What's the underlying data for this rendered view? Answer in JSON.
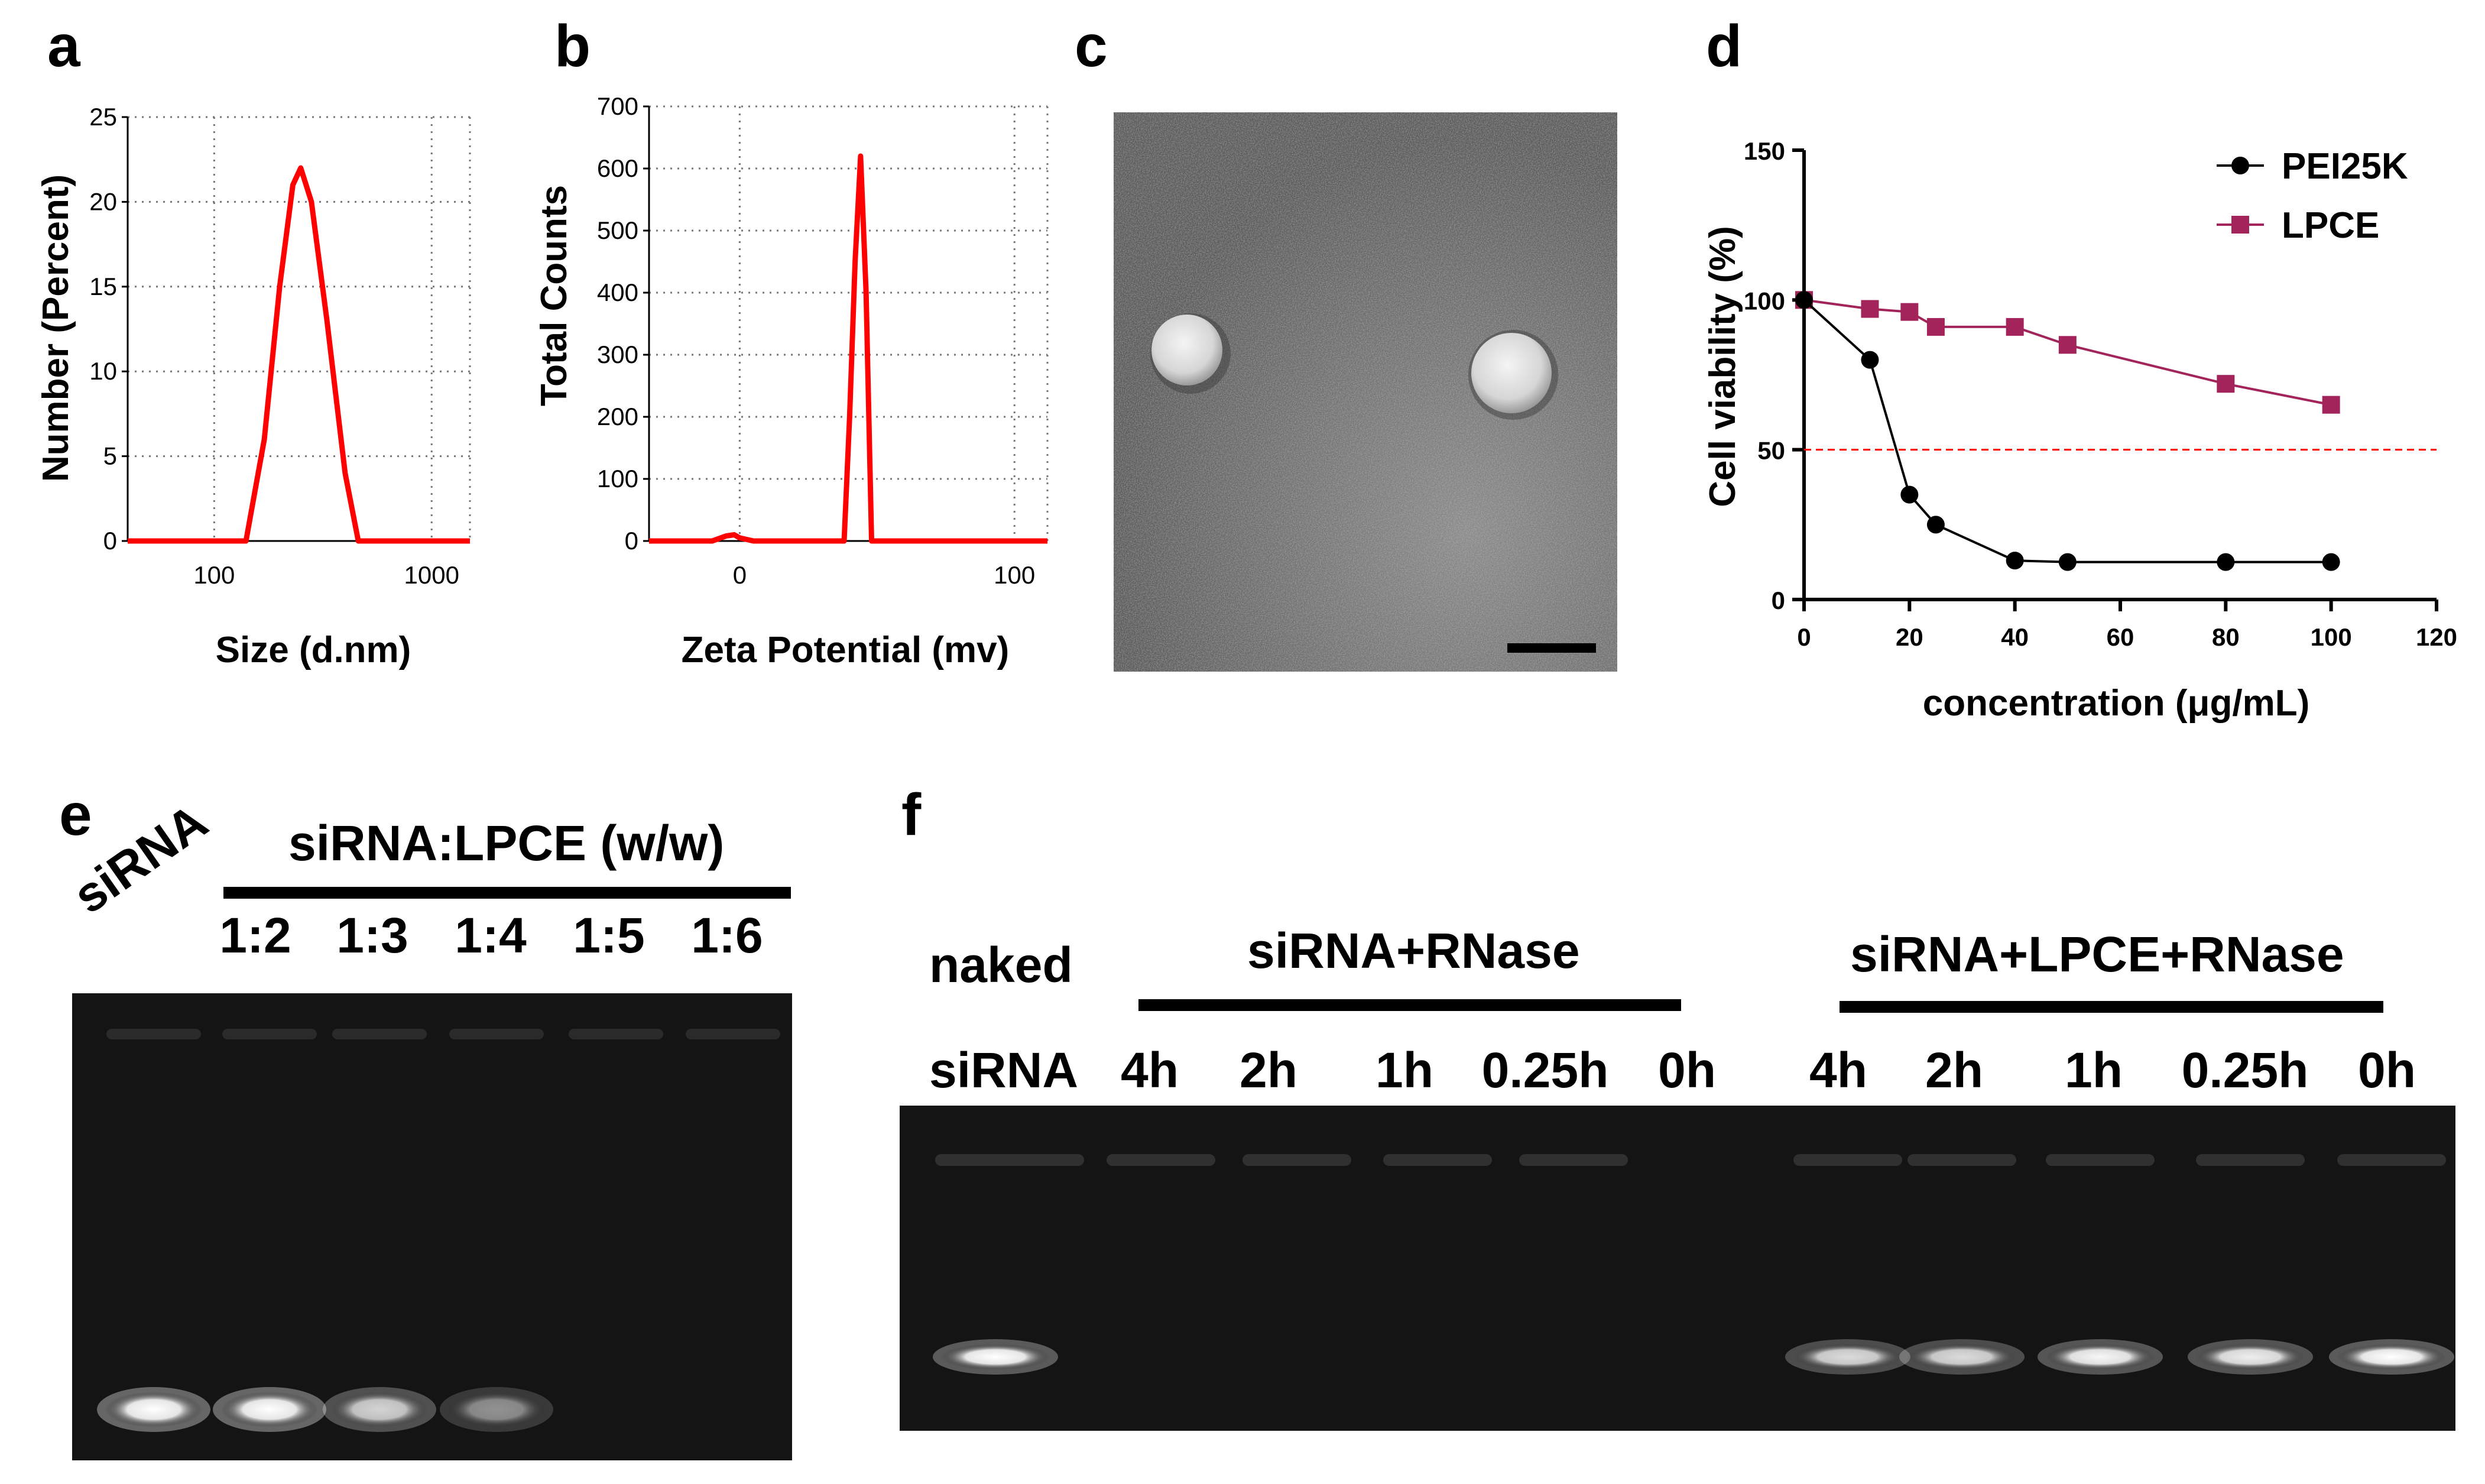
{
  "panels": {
    "a": "a",
    "b": "b",
    "c": "c",
    "d": "d",
    "e": "e",
    "f": "f"
  },
  "chart_data": [
    {
      "id": "a",
      "type": "line",
      "xlabel": "Size (d.nm)",
      "ylabel": "Number (Percent)",
      "xscale": "log",
      "xlim": [
        40,
        1500
      ],
      "ylim": [
        0,
        25
      ],
      "xticks": [
        100,
        1000
      ],
      "xtick_labels": [
        "100",
        "1000"
      ],
      "yticks": [
        0,
        5,
        10,
        15,
        20,
        25
      ],
      "grid": true,
      "series": [
        {
          "color": "#ff0000",
          "x": [
            40,
            100,
            140,
            170,
            200,
            230,
            250,
            280,
            330,
            400,
            460,
            1500
          ],
          "y": [
            0,
            0,
            0,
            6,
            15,
            21,
            22,
            20,
            13,
            4,
            0,
            0
          ]
        }
      ]
    },
    {
      "id": "b",
      "type": "line",
      "xlabel": "Zeta Potential (mv)",
      "ylabel": "Total Counts",
      "xlim": [
        -33,
        112
      ],
      "ylim": [
        0,
        700
      ],
      "xticks": [
        0,
        100
      ],
      "yticks": [
        0,
        100,
        200,
        300,
        400,
        500,
        600,
        700
      ],
      "grid": true,
      "series": [
        {
          "color": "#ff0000",
          "x": [
            -33,
            -10,
            -5,
            -2,
            0,
            5,
            10,
            35,
            38,
            40,
            42,
            44,
            46,
            48,
            112
          ],
          "y": [
            0,
            0,
            8,
            10,
            5,
            0,
            0,
            0,
            0,
            200,
            450,
            620,
            400,
            0,
            0
          ]
        }
      ]
    },
    {
      "id": "d",
      "type": "line",
      "xlabel": "concentration (μg/mL)",
      "ylabel": "Cell viability (%)",
      "xlim": [
        0,
        120
      ],
      "ylim": [
        0,
        150
      ],
      "xticks": [
        0,
        20,
        40,
        60,
        80,
        100,
        120
      ],
      "yticks": [
        0,
        50,
        100,
        150
      ],
      "legend_position": "top-right",
      "reference_line": {
        "y": 50,
        "color": "#ff0000"
      },
      "series": [
        {
          "name": "PEI25K",
          "color": "#000000",
          "marker": "circle",
          "x": [
            0,
            12.5,
            20,
            25,
            40,
            50,
            80,
            100
          ],
          "y": [
            100,
            80,
            35,
            25,
            13,
            12.5,
            12.5,
            12.5
          ]
        },
        {
          "name": "LPCE",
          "color": "#a3245a",
          "marker": "square",
          "x": [
            0,
            12.5,
            20,
            25,
            40,
            50,
            80,
            100
          ],
          "y": [
            100,
            97,
            96,
            91,
            91,
            85,
            72,
            65
          ]
        }
      ]
    }
  ],
  "gel_e": {
    "first_lane": "siRNA",
    "group_label": "siRNA:LPCE (w/w)",
    "ratios": [
      "1:2",
      "1:3",
      "1:4",
      "1:5",
      "1:6"
    ],
    "band_intensities": [
      1.0,
      1.0,
      0.75,
      0.45,
      0,
      0
    ]
  },
  "gel_f": {
    "naked_label_1": "naked",
    "naked_label_2": "siRNA",
    "group1_label": "siRNA+RNase",
    "group2_label": "siRNA+LPCE+RNase",
    "group1_times": [
      "4h",
      "2h",
      "1h",
      "0.25h",
      "0h"
    ],
    "group2_times": [
      "4h",
      "2h",
      "1h",
      "0.25h",
      "0h"
    ],
    "naked_band_intensity": 1.0,
    "group1_band_intensities": [
      0,
      0,
      0,
      0,
      0
    ],
    "group2_band_intensities": [
      0.8,
      0.8,
      0.95,
      0.9,
      1.0
    ]
  }
}
